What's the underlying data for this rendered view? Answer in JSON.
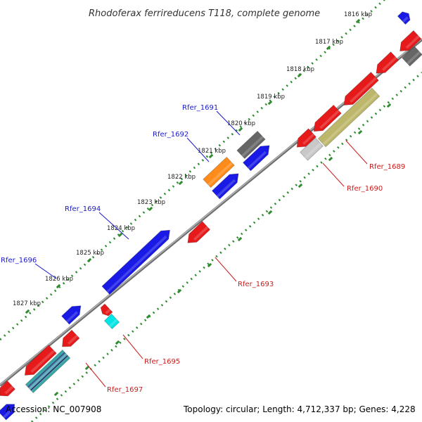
{
  "title": "Rhodoferax ferrireducens T118, complete genome",
  "footer": {
    "accession": "Accession: NC_007908",
    "summary": "Topology: circular; Length: 4,712,337 bp; Genes: 4,228"
  },
  "colors": {
    "background": "#ffffff",
    "backbone": "#8a8a8a",
    "tick": "#2e8b2e",
    "forward_label": "#1a1acc",
    "reverse_label": "#cc1a1a",
    "forward_gene": "#1a1ae6",
    "reverse_gene": "#e61a1a",
    "gray_gene": "#666666",
    "orange_gene": "#ff8c1a",
    "khaki_gene": "#bdb76b",
    "cyan_gene": "#00e5e5",
    "light_gray_gene": "#c8c8c8"
  },
  "kbp_labels": [
    "1816 kbp",
    "1817 kbp",
    "1818 kbp",
    "1819 kbp",
    "1820 kbp",
    "1821 kbp",
    "1822 kbp",
    "1823 kbp",
    "1824 kbp",
    "1825 kbp",
    "1826 kbp",
    "1827 kbp"
  ],
  "gene_labels": {
    "forward": [
      "Rfer_1691",
      "Rfer_1692",
      "Rfer_1694",
      "Rfer_1696"
    ],
    "reverse": [
      "Rfer_1689",
      "Rfer_1690",
      "Rfer_1693",
      "Rfer_1695",
      "Rfer_1697"
    ]
  },
  "genes": [
    {
      "color": "blue",
      "arrow": true
    },
    {
      "color": "gray",
      "arrow": false
    },
    {
      "color": "blue",
      "arrow": true
    },
    {
      "color": "orange",
      "arrow": false
    },
    {
      "color": "blue",
      "arrow": true
    },
    {
      "color": "blue",
      "arrow": true
    },
    {
      "color": "blue",
      "arrow": true
    },
    {
      "color": "blue",
      "arrow": true
    },
    {
      "color": "red",
      "arrow": true
    },
    {
      "color": "gray",
      "arrow": false
    },
    {
      "color": "red",
      "arrow": true
    },
    {
      "color": "khaki",
      "arrow": false
    },
    {
      "color": "red",
      "arrow": true
    },
    {
      "color": "red",
      "arrow": true
    },
    {
      "color": "red",
      "arrow": true
    },
    {
      "color": "lightgray",
      "arrow": false
    },
    {
      "color": "red",
      "arrow": true
    },
    {
      "color": "red",
      "arrow": true
    },
    {
      "color": "cyan",
      "arrow": false
    },
    {
      "color": "red",
      "arrow": true
    },
    {
      "color": "red",
      "arrow": true
    },
    {
      "color": "teal",
      "arrow": false
    },
    {
      "color": "red",
      "arrow": true
    }
  ]
}
